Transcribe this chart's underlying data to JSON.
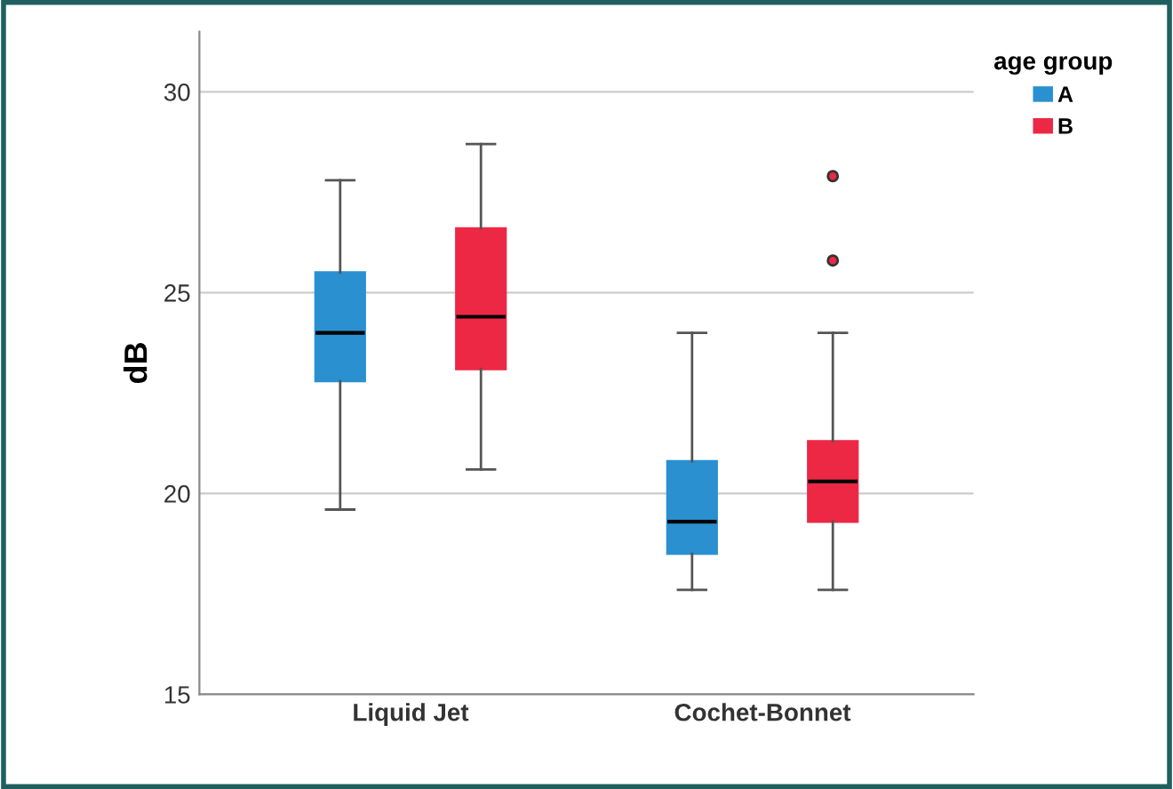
{
  "chart_data": {
    "type": "box",
    "ylabel": "dB",
    "legend_title": "age group",
    "categories": [
      "Liquid Jet",
      "Cochet-Bonnet"
    ],
    "series": [
      {
        "name": "A",
        "color": "#2a90d0",
        "boxes": [
          {
            "low": 19.6,
            "q1": 22.8,
            "median": 24.0,
            "q3": 25.5,
            "high": 27.8
          },
          {
            "low": 17.6,
            "q1": 18.5,
            "median": 19.3,
            "q3": 20.8,
            "high": 24.0
          }
        ]
      },
      {
        "name": "B",
        "color": "#ec2845",
        "boxes": [
          {
            "low": 20.6,
            "q1": 23.1,
            "median": 24.4,
            "q3": 26.6,
            "high": 28.7
          },
          {
            "low": 17.6,
            "q1": 19.3,
            "median": 20.3,
            "q3": 21.3,
            "high": 24.0,
            "outliers": [
              25.8,
              27.9
            ]
          }
        ]
      }
    ],
    "ylim": [
      15,
      31.5
    ],
    "yticks": [
      15,
      20,
      25,
      30
    ],
    "grid": "y",
    "legend": "top right"
  }
}
